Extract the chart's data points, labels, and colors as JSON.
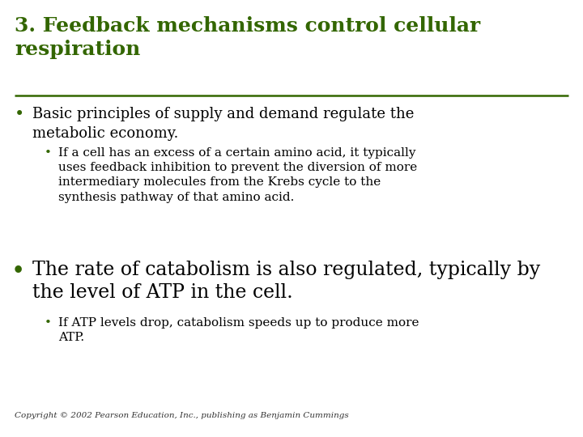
{
  "background_color": "#ffffff",
  "title_line1": "3. Feedback mechanisms control cellular",
  "title_line2": "respiration",
  "title_color": "#336600",
  "title_fontsize": 18,
  "divider_color": "#336600",
  "bullet1_fontsize": 13,
  "subbullet1_fontsize": 11,
  "bullet2_fontsize": 17,
  "subbullet2_fontsize": 11,
  "copyright_fontsize": 7.5,
  "copyright_color": "#333333",
  "bullet_color": "#336600",
  "text_color": "#000000",
  "copyright_text": "Copyright © 2002 Pearson Education, Inc., publishing as Benjamin Cummings"
}
